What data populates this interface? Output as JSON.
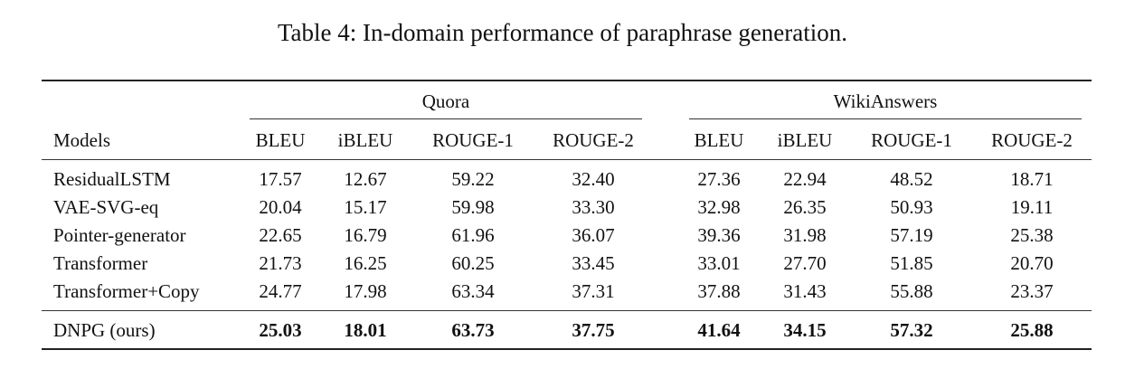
{
  "caption": "Table 4: In-domain performance of paraphrase generation.",
  "table": {
    "group_headers": [
      "Quora",
      "WikiAnswers"
    ],
    "model_header": "Models",
    "metric_headers": [
      "BLEU",
      "iBLEU",
      "ROUGE-1",
      "ROUGE-2",
      "BLEU",
      "iBLEU",
      "ROUGE-1",
      "ROUGE-2"
    ],
    "rows": [
      {
        "model": "ResidualLSTM",
        "values": [
          "17.57",
          "12.67",
          "59.22",
          "32.40",
          "27.36",
          "22.94",
          "48.52",
          "18.71"
        ]
      },
      {
        "model": "VAE-SVG-eq",
        "values": [
          "20.04",
          "15.17",
          "59.98",
          "33.30",
          "32.98",
          "26.35",
          "50.93",
          "19.11"
        ]
      },
      {
        "model": "Pointer-generator",
        "values": [
          "22.65",
          "16.79",
          "61.96",
          "36.07",
          "39.36",
          "31.98",
          "57.19",
          "25.38"
        ]
      },
      {
        "model": "Transformer",
        "values": [
          "21.73",
          "16.25",
          "60.25",
          "33.45",
          "33.01",
          "27.70",
          "51.85",
          "20.70"
        ]
      },
      {
        "model": "Transformer+Copy",
        "values": [
          "24.77",
          "17.98",
          "63.34",
          "37.31",
          "37.88",
          "31.43",
          "55.88",
          "23.37"
        ]
      }
    ],
    "best_row": {
      "model": "DNPG (ours)",
      "values": [
        "25.03",
        "18.01",
        "63.73",
        "37.75",
        "41.64",
        "34.15",
        "57.32",
        "25.88"
      ]
    }
  }
}
